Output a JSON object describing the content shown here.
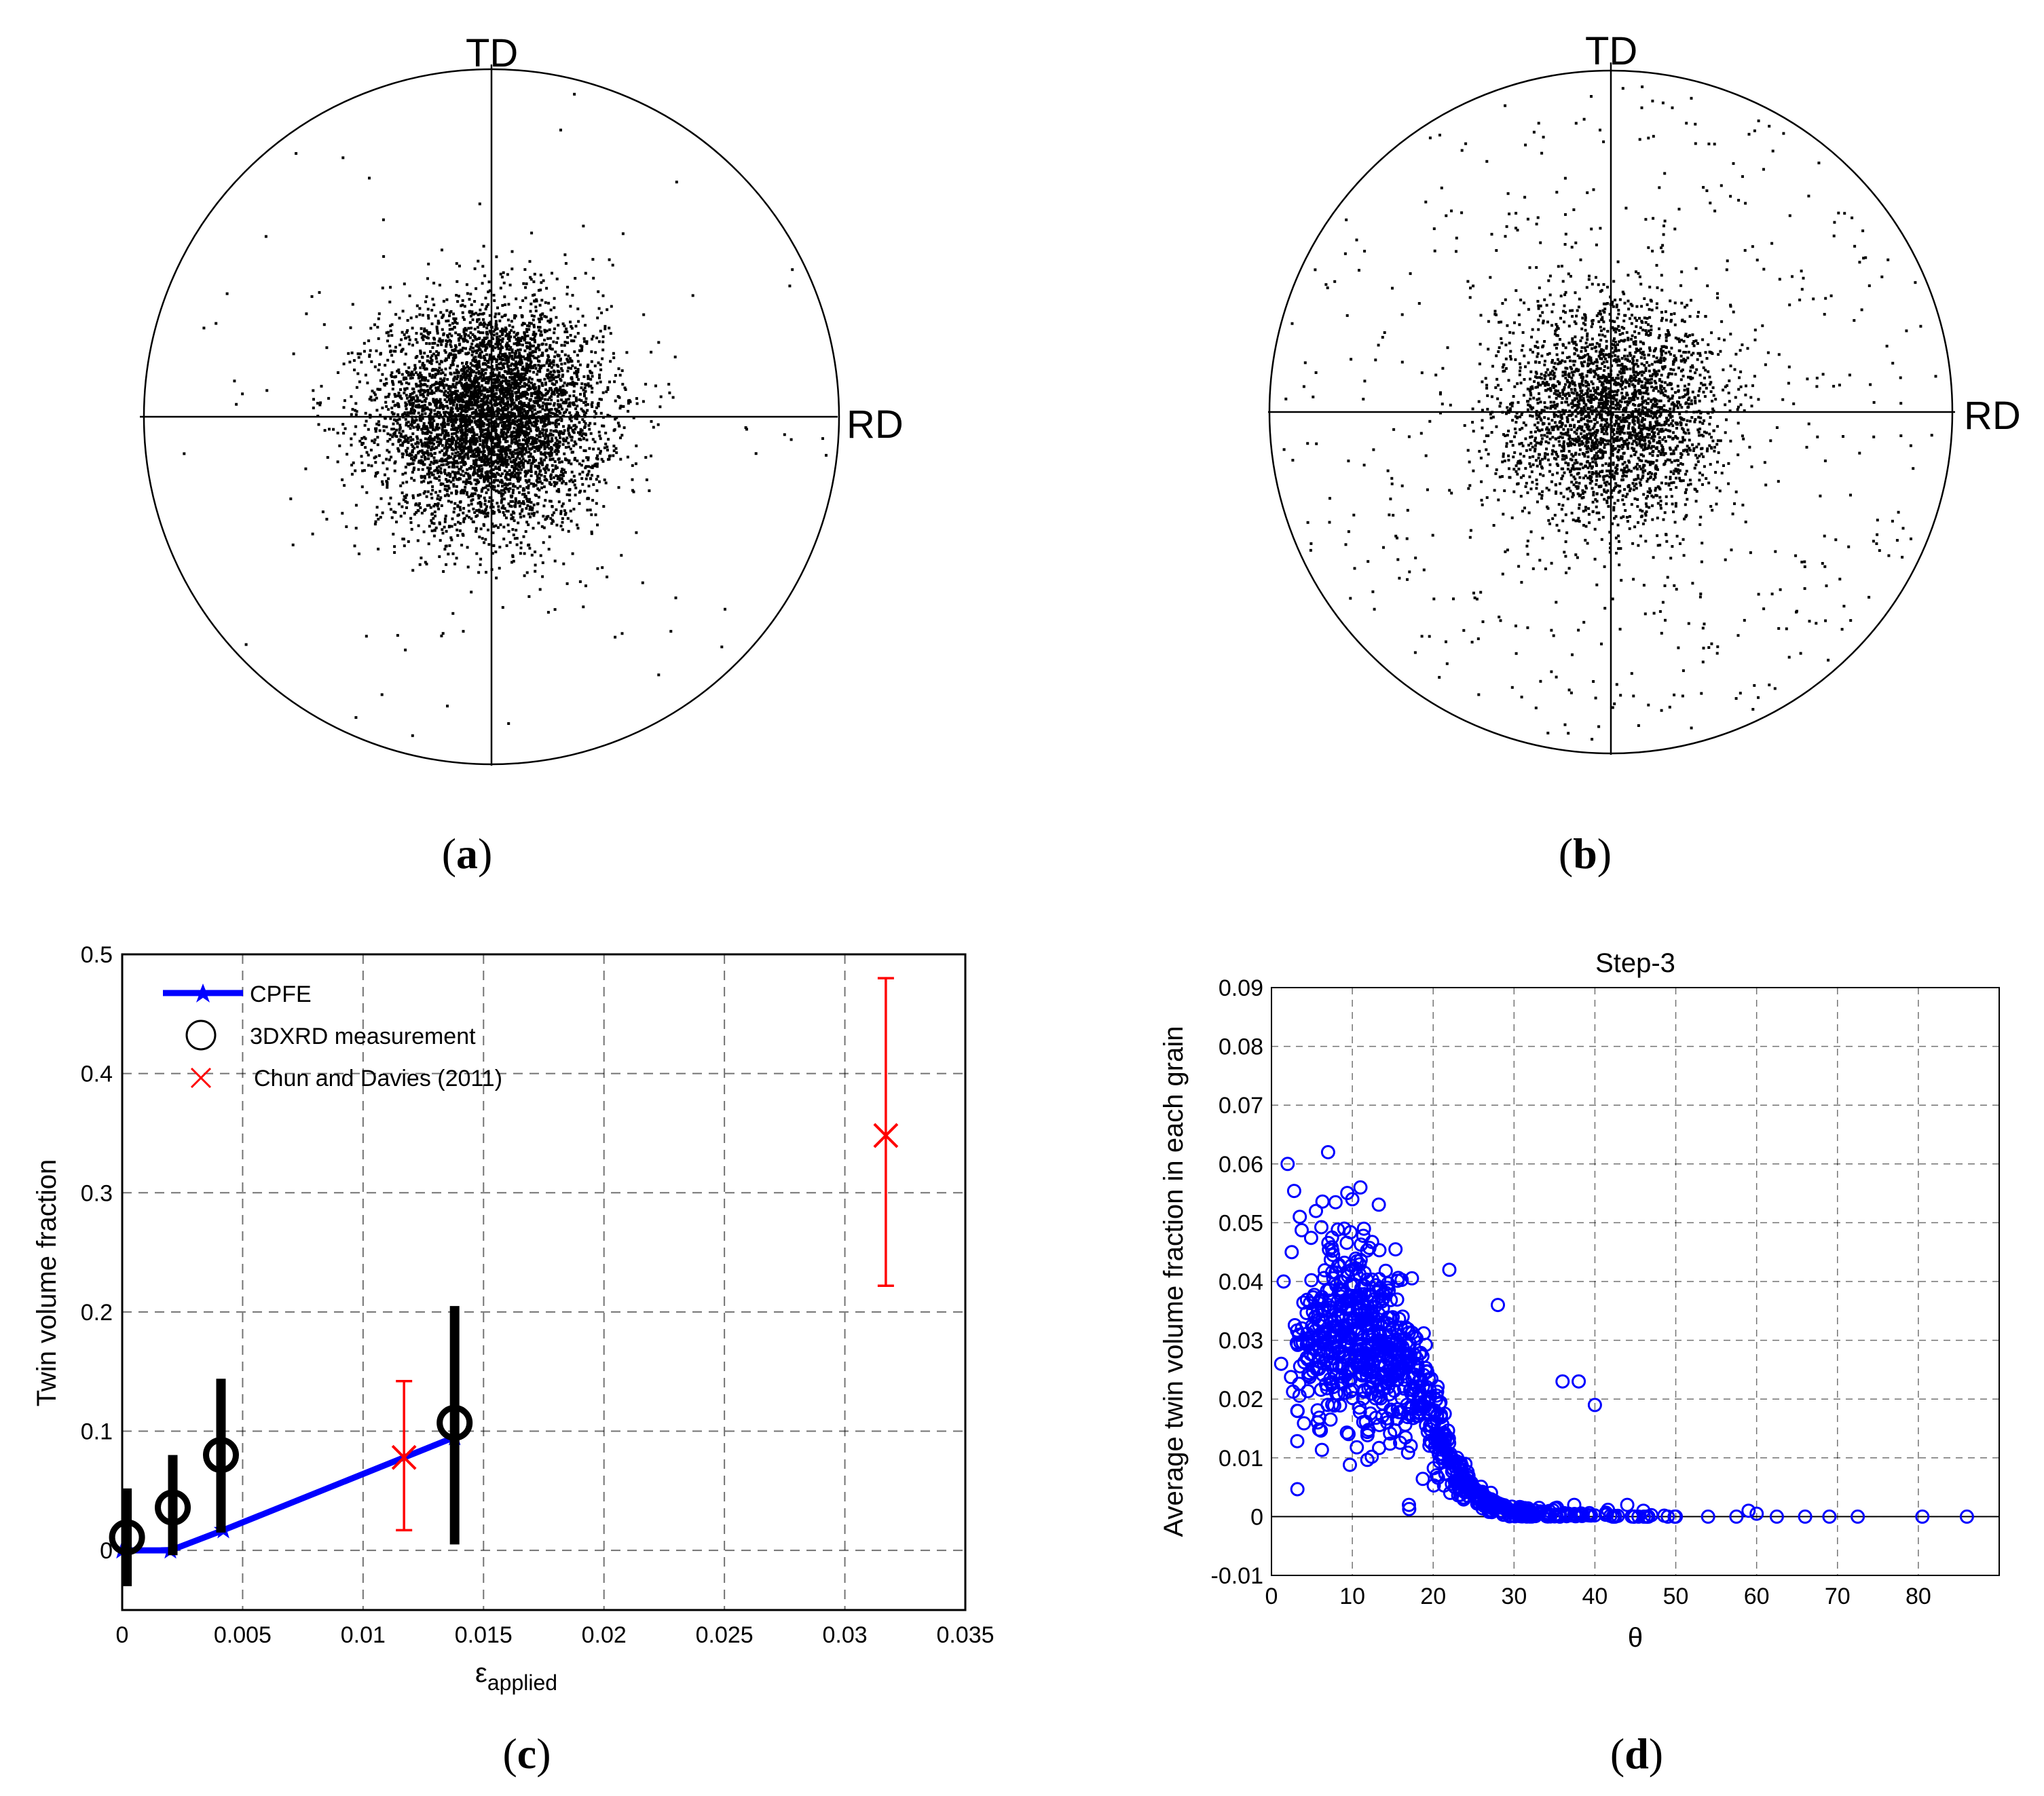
{
  "figure": {
    "panel_labels": [
      {
        "id": "a",
        "open": "(",
        "letter": "a",
        "close": ")"
      },
      {
        "id": "b",
        "open": "(",
        "letter": "b",
        "close": ")"
      },
      {
        "id": "c",
        "open": "(",
        "letter": "c",
        "close": ")"
      },
      {
        "id": "d",
        "open": "(",
        "letter": "d",
        "close": ")"
      }
    ]
  },
  "chart_data": [
    {
      "id": "a",
      "type": "scatter",
      "subtype": "pole-figure",
      "axis_labels": {
        "top": "TD",
        "right": "RD"
      },
      "description_values": {
        "sigma": 0.16,
        "n_core": 5200,
        "n_background": 75,
        "center": [
          0.0,
          0.0
        ]
      },
      "colors": {
        "points": "#000000",
        "lines": "#000000"
      }
    },
    {
      "id": "b",
      "type": "scatter",
      "subtype": "pole-figure",
      "axis_labels": {
        "top": "TD",
        "right": "RD"
      },
      "description_values": {
        "sigma": 0.16,
        "n_core": 2800,
        "n_background": 520,
        "center": [
          0.0,
          0.0
        ]
      },
      "colors": {
        "points": "#000000",
        "lines": "#000000"
      }
    },
    {
      "id": "c",
      "type": "line",
      "xlabel": "ε",
      "xlabel_sub": "applied",
      "ylabel": "Twin volume fraction",
      "xlim": [
        0,
        0.035
      ],
      "ylim": [
        -0.05,
        0.5
      ],
      "xticks": [
        "0",
        "0.005",
        "0.01",
        "0.015",
        "0.02",
        "0.025",
        "0.03",
        "0.035"
      ],
      "xtick_values": [
        0,
        0.005,
        0.01,
        0.015,
        0.02,
        0.025,
        0.03,
        0.035
      ],
      "yticks": [
        "0",
        "0.1",
        "0.2",
        "0.3",
        "0.4",
        "0.5"
      ],
      "ytick_values": [
        0,
        0.1,
        0.2,
        0.3,
        0.4,
        0.5
      ],
      "grid": true,
      "legend": [
        "CPFE",
        "3DXRD measurement",
        "Chun and Davies (2011)"
      ],
      "legend_position": "top-left",
      "series": [
        {
          "name": "CPFE",
          "style": "line-star",
          "color": "#0000ff",
          "x": [
            0,
            0.002,
            0.0042,
            0.0138
          ],
          "y": [
            0,
            0.0,
            0.017,
            0.095
          ]
        },
        {
          "name": "3DXRD measurement",
          "style": "circle-errorbar",
          "color": "#000000",
          "x": [
            0.0002,
            0.0021,
            0.0041,
            0.0138
          ],
          "y": [
            0.011,
            0.036,
            0.08,
            0.107
          ],
          "err_low": [
            -0.03,
            -0.004,
            0.015,
            0.005
          ],
          "err_high": [
            0.052,
            0.08,
            0.144,
            0.205
          ]
        },
        {
          "name": "Chun and Davies (2011)",
          "style": "x-errorbar",
          "color": "#ff0000",
          "x": [
            0.0117,
            0.0317
          ],
          "y": [
            0.078,
            0.348
          ],
          "err_low": [
            0.017,
            0.222
          ],
          "err_high": [
            0.142,
            0.48
          ]
        }
      ]
    },
    {
      "id": "d",
      "type": "scatter",
      "title": "Step-3",
      "xlabel": "θ",
      "ylabel": "Average twin volume fraction in each grain",
      "xlim": [
        0,
        90
      ],
      "ylim": [
        -0.01,
        0.09
      ],
      "xticks": [
        "0",
        "10",
        "20",
        "30",
        "40",
        "50",
        "60",
        "70",
        "80"
      ],
      "xtick_values": [
        0,
        10,
        20,
        30,
        40,
        50,
        60,
        70,
        80
      ],
      "yticks": [
        "-0.01",
        "0",
        "0.01",
        "0.02",
        "0.03",
        "0.04",
        "0.05",
        "0.06",
        "0.07",
        "0.08",
        "0.09"
      ],
      "ytick_values": [
        -0.01,
        0,
        0.01,
        0.02,
        0.03,
        0.04,
        0.05,
        0.06,
        0.07,
        0.08,
        0.09
      ],
      "grid": true,
      "color": "#0000ff",
      "trend": {
        "peak_y_at_x0": 0.032,
        "decay_center": 20,
        "decay_width": 11,
        "zero_beyond": 48,
        "n_points": 900
      },
      "highlight_points": {
        "x": [
          2,
          2.5,
          7,
          11,
          10,
          3.5,
          5.5,
          1.5,
          9,
          17,
          22,
          28,
          36,
          38,
          40,
          59,
          60,
          62.5,
          66,
          69,
          72.5,
          80.5,
          86,
          54,
          57.5,
          50,
          46,
          44,
          1.2,
          3.2
        ],
        "y": [
          0.06,
          0.045,
          0.062,
          0.056,
          0.054,
          0.051,
          0.052,
          0.04,
          0.049,
          0.002,
          0.042,
          0.036,
          0.023,
          0.023,
          0.019,
          0.001,
          0.0005,
          0,
          0,
          0,
          0,
          0,
          0,
          0,
          0,
          0,
          0.001,
          0.002,
          0.026,
          0.018
        ]
      }
    }
  ]
}
